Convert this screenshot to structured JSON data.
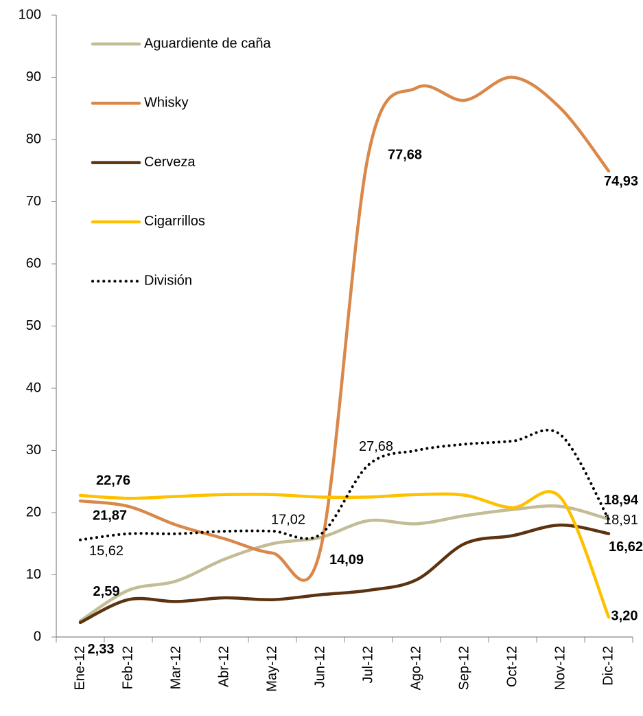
{
  "chart_data": {
    "type": "line",
    "categories": [
      "Ene-12",
      "Feb-12",
      "Mar-12",
      "Abr-12",
      "May-12",
      "Jun-12",
      "Jul-12",
      "Ago-12",
      "Sep-12",
      "Oct-12",
      "Nov-12",
      "Dic-12"
    ],
    "ylim": [
      0,
      100
    ],
    "yticks": [
      0,
      10,
      20,
      30,
      40,
      50,
      60,
      70,
      80,
      90,
      100
    ],
    "legend": "top-left",
    "series": [
      {
        "name": "Aguardiente de caña",
        "color": "#c4bc96",
        "label_color": "#948a54",
        "values": [
          2.59,
          7.5,
          9,
          12.5,
          15,
          16,
          18.7,
          18.2,
          19.5,
          20.5,
          21,
          18.94
        ],
        "value_labels": [
          "2,59",
          null,
          null,
          null,
          null,
          null,
          null,
          null,
          null,
          null,
          null,
          "18,94"
        ]
      },
      {
        "name": "Whisky",
        "color": "#d9884a",
        "label_color": "#d9884a",
        "values": [
          21.87,
          21,
          18,
          15.8,
          13.5,
          14.09,
          77.68,
          88.3,
          86.3,
          90,
          85,
          74.93
        ],
        "value_labels": [
          "21,87",
          null,
          null,
          null,
          null,
          "14,09",
          "77,68",
          null,
          null,
          null,
          null,
          "74,93"
        ]
      },
      {
        "name": "Cerveza",
        "color": "#5c3310",
        "label_color": "#6b3a10",
        "values": [
          2.33,
          6,
          5.7,
          6.3,
          6,
          6.8,
          7.5,
          9.2,
          15,
          16.3,
          18,
          16.62
        ],
        "value_labels": [
          "2,33",
          null,
          null,
          null,
          null,
          null,
          null,
          null,
          null,
          null,
          null,
          "16,62"
        ]
      },
      {
        "name": "Cigarrillos",
        "color": "#ffc000",
        "label_color": "#ffc000",
        "values": [
          22.76,
          22.3,
          22.6,
          22.9,
          22.9,
          22.5,
          22.5,
          22.9,
          22.8,
          20.8,
          22.4,
          3.2
        ],
        "value_labels": [
          "22,76",
          null,
          null,
          null,
          null,
          null,
          null,
          null,
          null,
          null,
          null,
          "3,20"
        ]
      },
      {
        "name": "División",
        "color": "#000000",
        "label_color": "#000000",
        "dotted": true,
        "values": [
          15.62,
          16.6,
          16.6,
          17,
          17.02,
          16.5,
          27.68,
          30,
          31,
          31.5,
          32.5,
          18.91
        ],
        "value_labels": [
          "15,62",
          null,
          null,
          null,
          "17,02",
          null,
          "27,68",
          null,
          null,
          null,
          null,
          "18,91"
        ]
      }
    ]
  }
}
